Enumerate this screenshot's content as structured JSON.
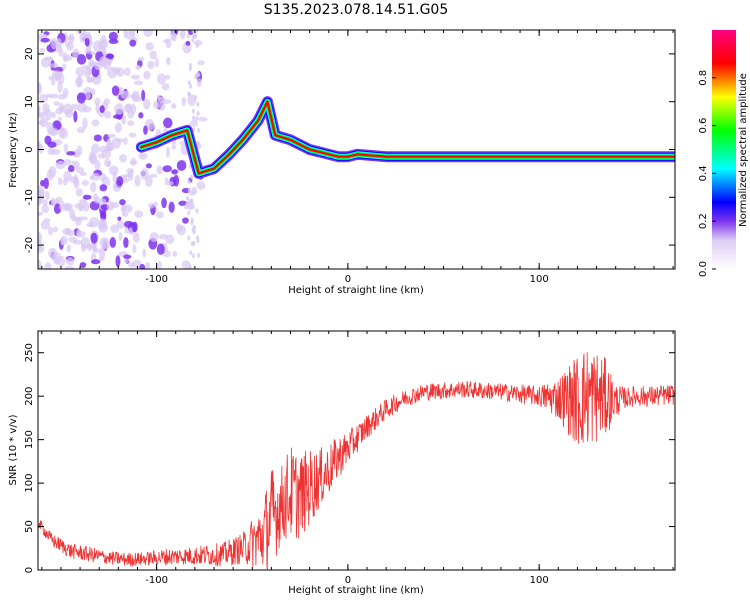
{
  "title": "S135.2023.078.14.51.G05",
  "chart_data": [
    {
      "type": "heatmap",
      "xlabel": "Height of straight line (km)",
      "ylabel": "Frequency (Hz)",
      "xlim": [
        -162,
        171
      ],
      "ylim": [
        -25,
        25
      ],
      "x_ticks": [
        -100,
        0,
        100
      ],
      "y_ticks": [
        -20,
        -10,
        0,
        10,
        20
      ],
      "colorbar": {
        "label": "Normalized spectral amplitude",
        "range": [
          0,
          1
        ],
        "ticks": [
          "0.0",
          "0.2",
          "0.4",
          "0.6",
          "0.8"
        ],
        "colors": [
          "#ffffff",
          "#ddccf4",
          "#7f33ef",
          "#0000ff",
          "#00ffff",
          "#00ff00",
          "#ffff00",
          "#ff0000",
          "#ff0080"
        ]
      },
      "ridge": {
        "description_points": [
          [
            -108,
            0.5
          ],
          [
            -100,
            1.5
          ],
          [
            -92,
            3
          ],
          [
            -84,
            4
          ],
          [
            -78,
            -5
          ],
          [
            -70,
            -4
          ],
          [
            -62,
            -1
          ],
          [
            -55,
            2
          ],
          [
            -47,
            6
          ],
          [
            -42,
            10
          ],
          [
            -38,
            3
          ],
          [
            -30,
            2
          ],
          [
            -20,
            0
          ],
          [
            -10,
            -1
          ],
          [
            -5,
            -1.5
          ],
          [
            0,
            -1.5
          ],
          [
            5,
            -1
          ],
          [
            20,
            -1.5
          ],
          [
            100,
            -1.5
          ],
          [
            171,
            -1.5
          ]
        ]
      }
    },
    {
      "type": "line",
      "xlabel": "Height of straight line (km)",
      "ylabel": "SNR (10 * v/v)",
      "xlim": [
        -162,
        171
      ],
      "ylim": [
        0,
        275
      ],
      "x_ticks": [
        -100,
        0,
        100
      ],
      "y_ticks": [
        0,
        50,
        100,
        150,
        200,
        250
      ],
      "series_color": "#ee3333",
      "x": [
        -162,
        -155,
        -145,
        -135,
        -125,
        -115,
        -105,
        -95,
        -85,
        -75,
        -65,
        -55,
        -45,
        -40,
        -35,
        -30,
        -25,
        -20,
        -15,
        -10,
        -5,
        0,
        10,
        20,
        30,
        40,
        60,
        80,
        100,
        110,
        120,
        125,
        130,
        135,
        140,
        145,
        150,
        160,
        171
      ],
      "values": [
        55,
        35,
        22,
        18,
        14,
        12,
        13,
        15,
        16,
        17,
        18,
        25,
        38,
        60,
        75,
        90,
        85,
        95,
        105,
        115,
        130,
        140,
        165,
        185,
        198,
        205,
        208,
        205,
        200,
        198,
        195,
        200,
        200,
        198,
        195,
        198,
        200,
        200,
        202
      ],
      "noise": [
        6,
        8,
        9,
        9,
        8,
        8,
        8,
        10,
        10,
        12,
        14,
        18,
        40,
        60,
        45,
        55,
        50,
        45,
        35,
        30,
        25,
        20,
        14,
        12,
        10,
        10,
        10,
        10,
        12,
        25,
        55,
        60,
        55,
        45,
        20,
        12,
        12,
        12,
        12
      ]
    }
  ]
}
